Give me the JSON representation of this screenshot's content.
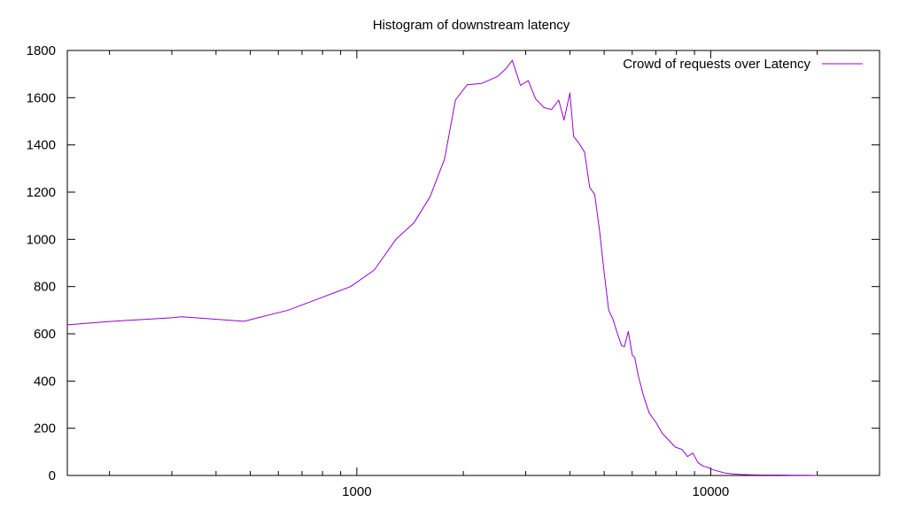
{
  "chart_data": {
    "type": "line",
    "title": "Histogram of downstream latency",
    "xlabel": "",
    "ylabel": "",
    "x_scale": "log",
    "xlim": [
      152,
      30000
    ],
    "ylim": [
      0,
      1800
    ],
    "x_ticks": [
      1000,
      10000
    ],
    "x_tick_labels": [
      "1000",
      "10000"
    ],
    "y_ticks": [
      0,
      200,
      400,
      600,
      800,
      1000,
      1200,
      1400,
      1600,
      1800
    ],
    "y_tick_labels": [
      "0",
      "200",
      "400",
      "600",
      "800",
      "1000",
      "1200",
      "1400",
      "1600",
      "1800"
    ],
    "grid": false,
    "legend_position": "top-right",
    "series": [
      {
        "name": "Crowd of requests over Latency",
        "color": "#9400d3",
        "x": [
          152,
          200,
          300,
          320,
          480,
          640,
          800,
          960,
          1120,
          1290,
          1450,
          1610,
          1770,
          1900,
          2050,
          2250,
          2500,
          2630,
          2750,
          2900,
          3050,
          3200,
          3380,
          3550,
          3720,
          3850,
          4000,
          4100,
          4230,
          4400,
          4550,
          4700,
          4850,
          5000,
          5150,
          5300,
          5450,
          5600,
          5700,
          5850,
          6000,
          6100,
          6250,
          6450,
          6700,
          7000,
          7300,
          7600,
          7950,
          8300,
          8600,
          8900,
          9200,
          9500,
          9800,
          10100,
          10500,
          11000,
          11600,
          12200,
          13000,
          14000,
          15500,
          17000,
          18500,
          20000
        ],
        "values": [
          638,
          652,
          668,
          672,
          653,
          700,
          755,
          800,
          870,
          1000,
          1070,
          1180,
          1340,
          1590,
          1655,
          1660,
          1690,
          1720,
          1758,
          1652,
          1672,
          1595,
          1558,
          1550,
          1590,
          1505,
          1620,
          1435,
          1410,
          1370,
          1220,
          1190,
          1040,
          860,
          700,
          660,
          600,
          550,
          545,
          610,
          510,
          500,
          420,
          340,
          265,
          225,
          178,
          150,
          120,
          110,
          80,
          95,
          55,
          40,
          35,
          25,
          18,
          10,
          6,
          4,
          3,
          2,
          2,
          1,
          1,
          0
        ]
      }
    ]
  }
}
